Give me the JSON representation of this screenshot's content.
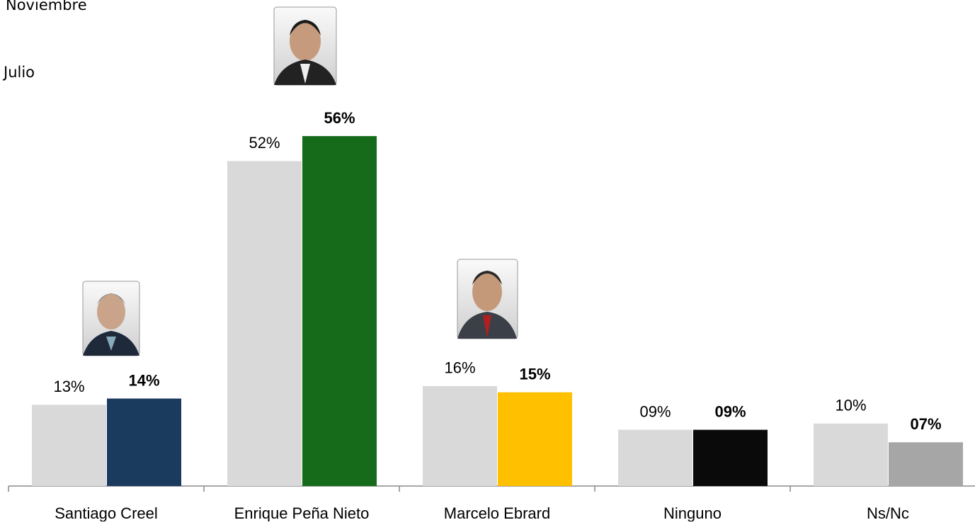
{
  "chart_data": {
    "type": "bar",
    "categories": [
      "Santiago Creel",
      "Enrique Peña Nieto",
      "Marcelo Ebrard",
      "Ninguno",
      "Ns/Nc"
    ],
    "series": [
      {
        "name": "Noviembre",
        "colors": [
          "#1a3a5e",
          "#156b1a",
          "#ffc000",
          "#0a0a0a",
          "#a6a6a6"
        ],
        "values": [
          14,
          56,
          15,
          9,
          7
        ],
        "value_labels": [
          "14%",
          "56%",
          "15%",
          "09%",
          "07%"
        ]
      },
      {
        "name": "Julio",
        "color": "#d9d9d9",
        "values": [
          13,
          52,
          16,
          9,
          10
        ],
        "value_labels": [
          "13%",
          "52%",
          "16%",
          "09%",
          "10%"
        ]
      }
    ]
  }
}
